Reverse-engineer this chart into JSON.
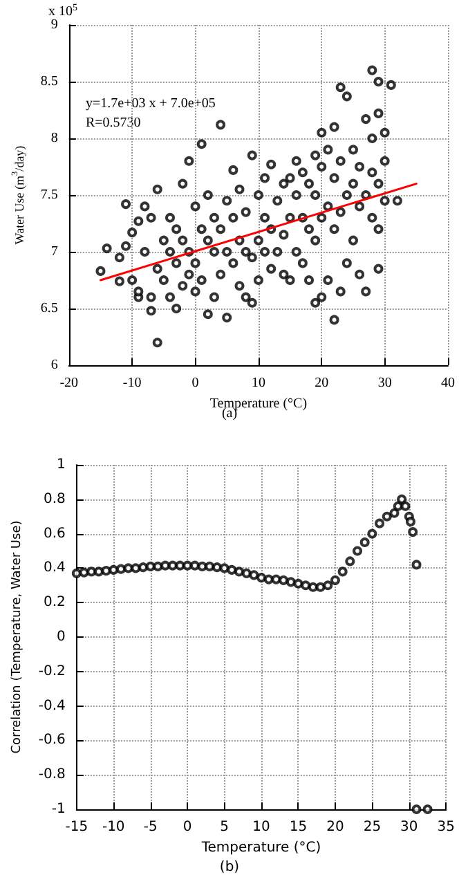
{
  "chart_data": [
    {
      "type": "scatter",
      "xlabel": "Temperature (°C)",
      "ylabel": "Water Use (m$^{3}$/day)",
      "annotations": [
        "x 10$^{5}$",
        "y=1.7e+03 x + 7.0e+05",
        "R=0.5730",
        "(a)"
      ],
      "xlim": [
        -20,
        40
      ],
      "xticks": [
        -20,
        -10,
        0,
        10,
        20,
        30,
        40
      ],
      "ylim": [
        6,
        9
      ],
      "yticks": [
        6,
        6.5,
        7,
        7.5,
        8,
        8.5,
        9
      ],
      "grid": true,
      "marker": "circle",
      "series": [
        {
          "type": "scatter",
          "color": "#000000",
          "x": [
            -15,
            -14,
            -12,
            -12,
            -11,
            -11,
            -10,
            -10,
            -9,
            -9,
            -9,
            -8,
            -8,
            -7,
            -7,
            -7,
            -6,
            -6,
            -6,
            -5,
            -5,
            -4,
            -4,
            -4,
            -3,
            -3,
            -3,
            -2,
            -2,
            -2,
            -1,
            -1,
            -1,
            0,
            0,
            0,
            1,
            1,
            1,
            2,
            2,
            2,
            3,
            3,
            3,
            4,
            4,
            4,
            5,
            5,
            5,
            6,
            6,
            6,
            7,
            7,
            7,
            8,
            8,
            8,
            9,
            9,
            9,
            10,
            10,
            10,
            11,
            11,
            11,
            12,
            12,
            12,
            13,
            13,
            14,
            14,
            14,
            15,
            15,
            15,
            16,
            16,
            16,
            17,
            17,
            17,
            18,
            18,
            18,
            19,
            19,
            19,
            19,
            20,
            20,
            20,
            20,
            21,
            21,
            21,
            22,
            22,
            22,
            22,
            23,
            23,
            23,
            23,
            24,
            24,
            24,
            25,
            25,
            25,
            26,
            26,
            26,
            27,
            27,
            27,
            28,
            28,
            28,
            28,
            29,
            29,
            29,
            29,
            29,
            30,
            30,
            30,
            31,
            32
          ],
          "values": [
            6.83,
            7.03,
            6.95,
            6.74,
            7.05,
            7.42,
            7.17,
            6.75,
            7.27,
            6.6,
            6.65,
            7.0,
            7.4,
            6.48,
            6.6,
            7.3,
            6.2,
            6.85,
            7.55,
            7.1,
            6.75,
            6.6,
            7.3,
            7.0,
            6.5,
            7.2,
            6.9,
            7.6,
            6.7,
            7.1,
            7.8,
            7.0,
            6.8,
            7.4,
            6.9,
            6.65,
            7.2,
            6.75,
            7.95,
            6.45,
            7.1,
            7.5,
            6.6,
            7.0,
            7.3,
            6.8,
            7.2,
            8.12,
            6.42,
            7.0,
            7.45,
            6.9,
            7.3,
            7.72,
            6.7,
            7.1,
            7.55,
            6.6,
            7.0,
            7.35,
            6.55,
            6.95,
            7.85,
            6.75,
            7.1,
            7.5,
            7.0,
            7.3,
            7.65,
            6.85,
            7.2,
            7.77,
            7.0,
            7.45,
            6.8,
            7.15,
            7.6,
            6.75,
            7.3,
            7.65,
            7.0,
            7.5,
            7.8,
            6.9,
            7.3,
            7.7,
            6.75,
            7.2,
            7.6,
            6.55,
            7.1,
            7.5,
            7.85,
            6.6,
            7.3,
            7.75,
            8.05,
            6.75,
            7.4,
            7.9,
            6.4,
            7.2,
            7.65,
            8.1,
            6.65,
            7.35,
            7.8,
            8.45,
            6.9,
            7.5,
            8.37,
            7.1,
            7.6,
            7.9,
            6.8,
            7.4,
            7.75,
            6.65,
            7.5,
            8.17,
            7.3,
            7.7,
            8.0,
            8.6,
            6.85,
            7.2,
            7.6,
            8.5,
            8.22,
            7.45,
            7.8,
            8.05,
            8.47,
            7.45
          ]
        },
        {
          "type": "line",
          "color": "#ff0000",
          "marker": "none",
          "x": [
            -15,
            35
          ],
          "values": [
            6.75,
            7.6
          ]
        }
      ]
    },
    {
      "type": "scatter",
      "xlabel": "Temperature (°C)",
      "ylabel": "Correlation (Temperature, Water Use)",
      "annotations": [
        "(b)"
      ],
      "xlim": [
        -15,
        35
      ],
      "xticks": [
        -15,
        -10,
        -5,
        0,
        5,
        10,
        15,
        20,
        25,
        30,
        35
      ],
      "ylim": [
        -1,
        1
      ],
      "yticks": [
        -1,
        -0.8,
        -0.6,
        -0.4,
        -0.2,
        0,
        0.2,
        0.4,
        0.6,
        0.8,
        1
      ],
      "grid": true,
      "marker": "circle",
      "series": [
        {
          "type": "scatter",
          "color": "#000000",
          "x": [
            -15,
            -14,
            -13,
            -12,
            -11,
            -10,
            -9,
            -8,
            -7,
            -6,
            -5,
            -4,
            -3,
            -2,
            -1,
            0,
            1,
            2,
            3,
            4,
            5,
            6,
            7,
            8,
            9,
            10,
            11,
            12,
            13,
            14,
            15,
            16,
            17,
            18,
            19,
            20,
            21,
            22,
            23,
            24,
            25,
            26,
            27,
            28,
            28.5,
            29,
            29.5,
            30,
            30.2,
            30.5,
            31,
            31,
            32.5
          ],
          "values": [
            0.37,
            0.375,
            0.38,
            0.38,
            0.385,
            0.39,
            0.395,
            0.4,
            0.4,
            0.405,
            0.41,
            0.41,
            0.415,
            0.415,
            0.415,
            0.415,
            0.415,
            0.41,
            0.41,
            0.405,
            0.4,
            0.39,
            0.38,
            0.37,
            0.36,
            0.345,
            0.335,
            0.335,
            0.33,
            0.32,
            0.31,
            0.3,
            0.29,
            0.29,
            0.3,
            0.33,
            0.38,
            0.44,
            0.5,
            0.55,
            0.6,
            0.66,
            0.7,
            0.72,
            0.76,
            0.8,
            0.76,
            0.7,
            0.67,
            0.61,
            0.42,
            -1,
            -1
          ]
        }
      ]
    }
  ]
}
